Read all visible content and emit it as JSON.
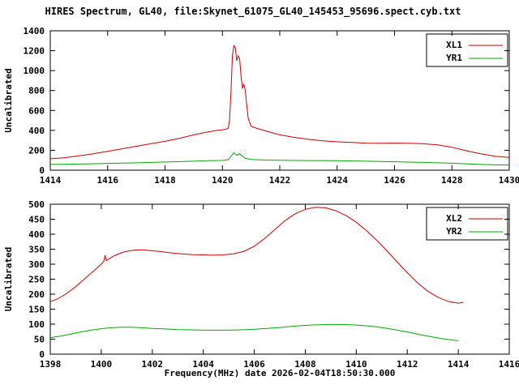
{
  "title": "HIRES Spectrum, GL40, file:Skynet_61075_GL40_145453_95696.spect.cyb.txt",
  "xlabel": "Frequency(MHz) date 2026-02-04T18:50:30.000",
  "colors": {
    "axis": "#000000",
    "text": "#000000",
    "red_series": "#cc0000",
    "green_series": "#00aa00",
    "background": "#ffffff"
  },
  "chart_data": [
    {
      "type": "line",
      "ylabel": "Uncalibrated",
      "xlim": [
        1414,
        1430
      ],
      "xtick_step": 2,
      "ylim": [
        0,
        1400
      ],
      "ytick_step": 200,
      "legend_position": "top-right",
      "grid": false,
      "legend": [
        "XL1",
        "YR1"
      ],
      "series": [
        {
          "name": "XL1",
          "color": "#cc0000",
          "points": [
            [
              1414,
              115
            ],
            [
              1414.5,
              125
            ],
            [
              1415,
              145
            ],
            [
              1415.5,
              165
            ],
            [
              1416,
              190
            ],
            [
              1416.5,
              215
            ],
            [
              1417,
              240
            ],
            [
              1417.5,
              265
            ],
            [
              1418,
              290
            ],
            [
              1418.5,
              320
            ],
            [
              1419,
              355
            ],
            [
              1419.5,
              385
            ],
            [
              1419.8,
              400
            ],
            [
              1420,
              405
            ],
            [
              1420.1,
              410
            ],
            [
              1420.2,
              420
            ],
            [
              1420.25,
              500
            ],
            [
              1420.3,
              800
            ],
            [
              1420.35,
              1150
            ],
            [
              1420.4,
              1250
            ],
            [
              1420.45,
              1230
            ],
            [
              1420.5,
              1100
            ],
            [
              1420.55,
              1150
            ],
            [
              1420.6,
              1120
            ],
            [
              1420.65,
              950
            ],
            [
              1420.7,
              820
            ],
            [
              1420.75,
              860
            ],
            [
              1420.8,
              800
            ],
            [
              1420.85,
              650
            ],
            [
              1420.9,
              520
            ],
            [
              1421,
              440
            ],
            [
              1421.2,
              420
            ],
            [
              1421.5,
              395
            ],
            [
              1422,
              355
            ],
            [
              1422.5,
              330
            ],
            [
              1423,
              310
            ],
            [
              1423.5,
              295
            ],
            [
              1424,
              285
            ],
            [
              1424.5,
              278
            ],
            [
              1425,
              272
            ],
            [
              1425.5,
              270
            ],
            [
              1426,
              272
            ],
            [
              1426.5,
              270
            ],
            [
              1427,
              265
            ],
            [
              1427.5,
              255
            ],
            [
              1428,
              230
            ],
            [
              1428.5,
              195
            ],
            [
              1429,
              165
            ],
            [
              1429.5,
              140
            ],
            [
              1430,
              128
            ]
          ]
        },
        {
          "name": "YR1",
          "color": "#00aa00",
          "points": [
            [
              1414,
              58
            ],
            [
              1415,
              62
            ],
            [
              1416,
              68
            ],
            [
              1417,
              74
            ],
            [
              1418,
              82
            ],
            [
              1419,
              90
            ],
            [
              1419.5,
              95
            ],
            [
              1420,
              98
            ],
            [
              1420.2,
              105
            ],
            [
              1420.3,
              140
            ],
            [
              1420.4,
              175
            ],
            [
              1420.45,
              160
            ],
            [
              1420.5,
              150
            ],
            [
              1420.6,
              165
            ],
            [
              1420.7,
              140
            ],
            [
              1420.8,
              120
            ],
            [
              1421,
              108
            ],
            [
              1421.5,
              102
            ],
            [
              1422,
              100
            ],
            [
              1423,
              97
            ],
            [
              1424,
              95
            ],
            [
              1425,
              90
            ],
            [
              1426,
              85
            ],
            [
              1427,
              78
            ],
            [
              1428,
              70
            ],
            [
              1428.5,
              64
            ],
            [
              1429,
              58
            ],
            [
              1429.5,
              54
            ],
            [
              1430,
              52
            ]
          ]
        }
      ]
    },
    {
      "type": "line",
      "ylabel": "Uncalibrated",
      "xlim": [
        1398,
        1416
      ],
      "xtick_step": 2,
      "ylim": [
        0,
        500
      ],
      "ytick_step": 50,
      "legend_position": "top-right",
      "grid": false,
      "legend": [
        "XL2",
        "YR2"
      ],
      "series": [
        {
          "name": "XL2",
          "color": "#cc0000",
          "points": [
            [
              1398,
              175
            ],
            [
              1398.3,
              185
            ],
            [
              1398.6,
              200
            ],
            [
              1399,
              225
            ],
            [
              1399.4,
              255
            ],
            [
              1399.8,
              285
            ],
            [
              1400,
              300
            ],
            [
              1400.1,
              310
            ],
            [
              1400.15,
              330
            ],
            [
              1400.2,
              312
            ],
            [
              1400.5,
              328
            ],
            [
              1400.8,
              338
            ],
            [
              1401,
              343
            ],
            [
              1401.3,
              347
            ],
            [
              1401.6,
              348
            ],
            [
              1402,
              345
            ],
            [
              1402.4,
              341
            ],
            [
              1402.8,
              337
            ],
            [
              1403.2,
              334
            ],
            [
              1403.6,
              332
            ],
            [
              1404,
              331
            ],
            [
              1404.4,
              330
            ],
            [
              1404.8,
              331
            ],
            [
              1405.2,
              335
            ],
            [
              1405.6,
              343
            ],
            [
              1406,
              360
            ],
            [
              1406.4,
              385
            ],
            [
              1406.8,
              415
            ],
            [
              1407.2,
              445
            ],
            [
              1407.6,
              468
            ],
            [
              1408,
              483
            ],
            [
              1408.4,
              490
            ],
            [
              1408.8,
              488
            ],
            [
              1409.2,
              478
            ],
            [
              1409.6,
              462
            ],
            [
              1410,
              440
            ],
            [
              1410.4,
              412
            ],
            [
              1410.8,
              380
            ],
            [
              1411.2,
              345
            ],
            [
              1411.6,
              308
            ],
            [
              1412,
              272
            ],
            [
              1412.4,
              238
            ],
            [
              1412.8,
              210
            ],
            [
              1413.2,
              190
            ],
            [
              1413.6,
              176
            ],
            [
              1414,
              170
            ],
            [
              1414.2,
              173
            ]
          ]
        },
        {
          "name": "YR2",
          "color": "#00aa00",
          "points": [
            [
              1398,
              55
            ],
            [
              1398.4,
              60
            ],
            [
              1398.8,
              67
            ],
            [
              1399.2,
              74
            ],
            [
              1399.6,
              80
            ],
            [
              1400,
              85
            ],
            [
              1400.4,
              88
            ],
            [
              1400.8,
              90
            ],
            [
              1401.2,
              90
            ],
            [
              1401.6,
              88
            ],
            [
              1402,
              86
            ],
            [
              1402.5,
              84
            ],
            [
              1403,
              82
            ],
            [
              1403.5,
              81
            ],
            [
              1404,
              80
            ],
            [
              1404.5,
              80
            ],
            [
              1405,
              80
            ],
            [
              1405.5,
              81
            ],
            [
              1406,
              83
            ],
            [
              1406.5,
              86
            ],
            [
              1407,
              89
            ],
            [
              1407.5,
              93
            ],
            [
              1408,
              96
            ],
            [
              1408.5,
              98
            ],
            [
              1409,
              99
            ],
            [
              1409.5,
              99
            ],
            [
              1410,
              97
            ],
            [
              1410.5,
              94
            ],
            [
              1411,
              89
            ],
            [
              1411.5,
              82
            ],
            [
              1412,
              74
            ],
            [
              1412.5,
              65
            ],
            [
              1413,
              57
            ],
            [
              1413.5,
              50
            ],
            [
              1414,
              45
            ]
          ]
        }
      ]
    }
  ]
}
